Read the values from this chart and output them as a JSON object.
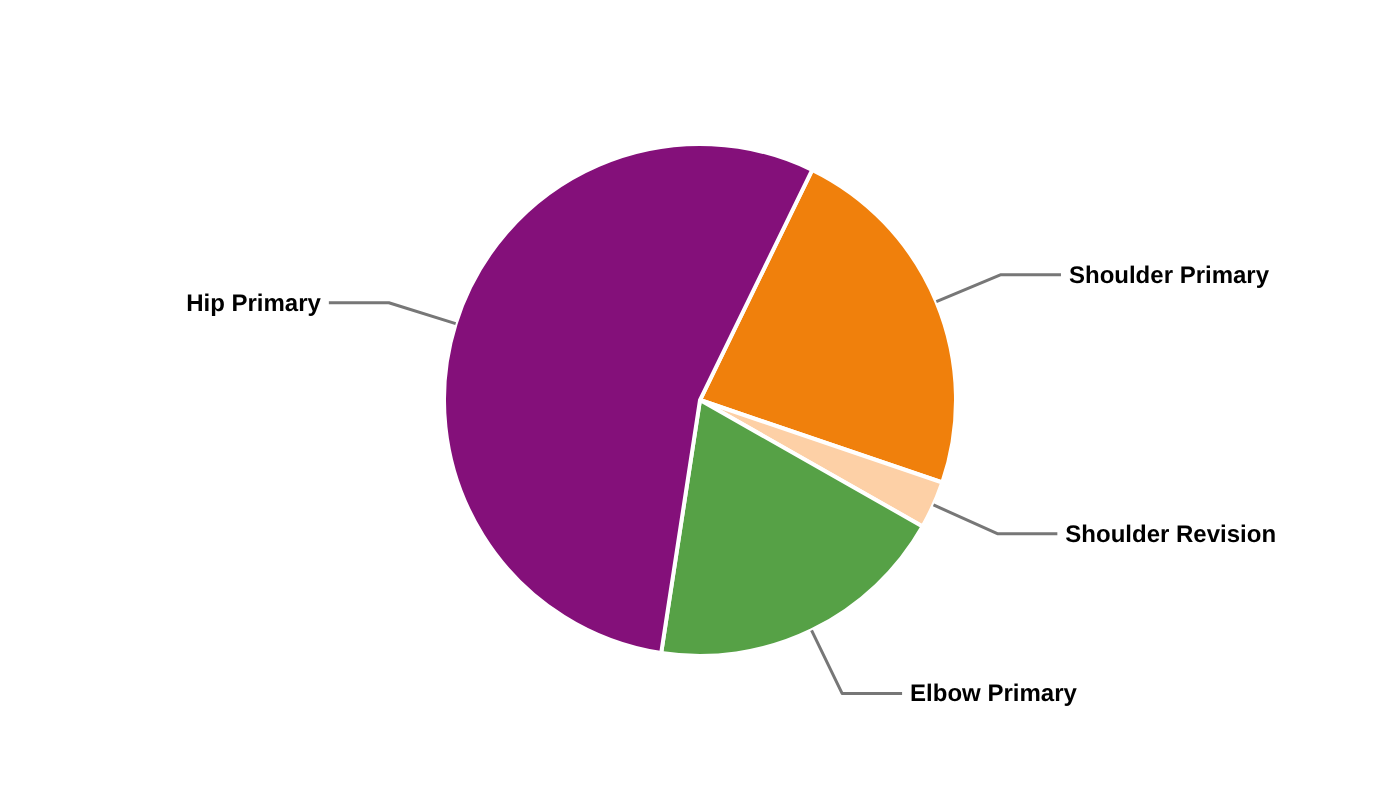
{
  "chart_data": {
    "type": "pie",
    "categories": [
      "Shoulder Primary",
      "Shoulder Revision",
      "Elbow Primary",
      "Hip Primary"
    ],
    "values": [
      23.0,
      3.0,
      19.2,
      54.8
    ],
    "colors": [
      "#f0800c",
      "#fdd0a6",
      "#56a146",
      "#84107a"
    ]
  }
}
